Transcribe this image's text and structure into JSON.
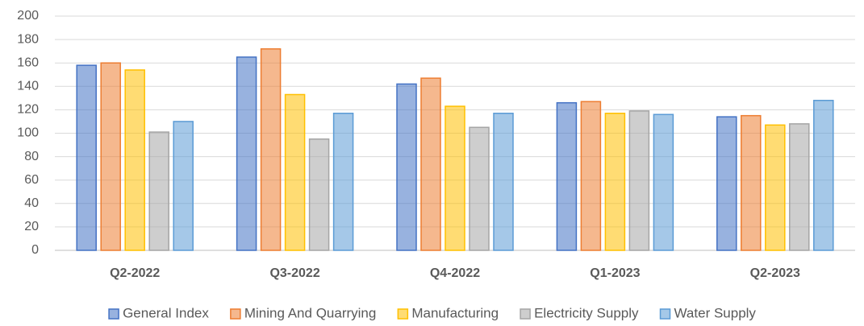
{
  "chart_data": {
    "type": "bar",
    "categories": [
      "Q2-2022",
      "Q3-2022",
      "Q4-2022",
      "Q1-2023",
      "Q2-2023"
    ],
    "series": [
      {
        "name": "General Index",
        "color": "#4472c4",
        "values": [
          158,
          165,
          142,
          126,
          114
        ]
      },
      {
        "name": "Mining And Quarrying",
        "color": "#ed7d31",
        "values": [
          160,
          172,
          147,
          127,
          115
        ]
      },
      {
        "name": "Manufacturing",
        "color": "#ffc000",
        "values": [
          154,
          133,
          123,
          117,
          107
        ]
      },
      {
        "name": "Electricity  Supply",
        "color": "#a5a5a5",
        "values": [
          101,
          95,
          105,
          119,
          108
        ]
      },
      {
        "name": "Water Supply",
        "color": "#5b9bd5",
        "values": [
          110,
          117,
          117,
          116,
          128
        ]
      }
    ],
    "ylim": [
      0,
      200
    ],
    "yticks": [
      0,
      20,
      40,
      60,
      80,
      100,
      120,
      140,
      160,
      180,
      200
    ],
    "grid": true,
    "legend": "bottom"
  }
}
